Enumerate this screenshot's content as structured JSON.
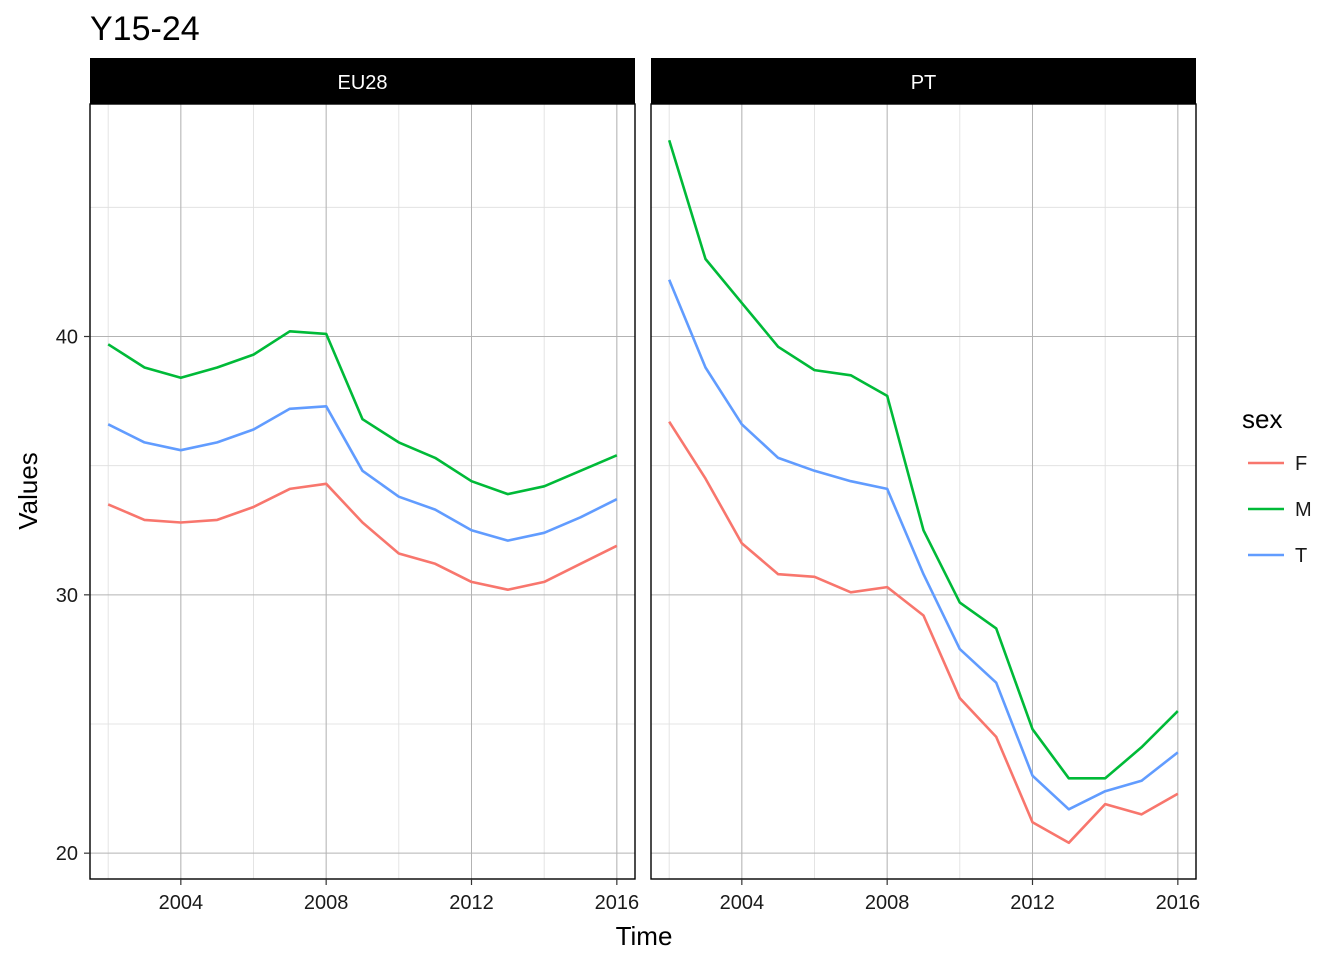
{
  "chart_data": {
    "type": "line",
    "title": "Y15-24",
    "xlabel": "Time",
    "ylabel": "Values",
    "xlim": [
      2001.5,
      2016.5
    ],
    "ylim": [
      19,
      49
    ],
    "x_ticks": [
      2004,
      2008,
      2012,
      2016
    ],
    "x_tick_labels": [
      "2004",
      "2008",
      "2012",
      "2016"
    ],
    "y_ticks": [
      20,
      30,
      40
    ],
    "y_tick_labels": [
      "20",
      "30",
      "40"
    ],
    "grid": true,
    "legend": {
      "title": "sex",
      "position": "right",
      "entries": [
        {
          "label": "F",
          "color": "#F8766D"
        },
        {
          "label": "M",
          "color": "#00BA38"
        },
        {
          "label": "T",
          "color": "#619CFF"
        }
      ]
    },
    "x": [
      2002,
      2003,
      2004,
      2005,
      2006,
      2007,
      2008,
      2009,
      2010,
      2011,
      2012,
      2013,
      2014,
      2015,
      2016
    ],
    "panels": [
      {
        "name": "EU28",
        "series": [
          {
            "name": "F",
            "color": "#F8766D",
            "values": [
              33.5,
              32.9,
              32.8,
              32.9,
              33.4,
              34.1,
              34.3,
              32.8,
              31.6,
              31.2,
              30.5,
              30.2,
              30.5,
              31.2,
              31.9
            ]
          },
          {
            "name": "M",
            "color": "#00BA38",
            "values": [
              39.7,
              38.8,
              38.4,
              38.8,
              39.3,
              40.2,
              40.1,
              36.8,
              35.9,
              35.3,
              34.4,
              33.9,
              34.2,
              34.8,
              35.4
            ]
          },
          {
            "name": "T",
            "color": "#619CFF",
            "values": [
              36.6,
              35.9,
              35.6,
              35.9,
              36.4,
              37.2,
              37.3,
              34.8,
              33.8,
              33.3,
              32.5,
              32.1,
              32.4,
              33.0,
              33.7
            ]
          }
        ]
      },
      {
        "name": "PT",
        "series": [
          {
            "name": "F",
            "color": "#F8766D",
            "values": [
              36.7,
              34.5,
              32.0,
              30.8,
              30.7,
              30.1,
              30.3,
              29.2,
              26.0,
              24.5,
              21.2,
              20.4,
              21.9,
              21.5,
              22.3
            ]
          },
          {
            "name": "M",
            "color": "#00BA38",
            "values": [
              47.6,
              43.0,
              41.3,
              39.6,
              38.7,
              38.5,
              37.7,
              32.5,
              29.7,
              28.7,
              24.8,
              22.9,
              22.9,
              24.1,
              25.5
            ]
          },
          {
            "name": "T",
            "color": "#619CFF",
            "values": [
              42.2,
              38.8,
              36.6,
              35.3,
              34.8,
              34.4,
              34.1,
              30.8,
              27.9,
              26.6,
              23.0,
              21.7,
              22.4,
              22.8,
              23.9
            ]
          }
        ]
      }
    ]
  }
}
